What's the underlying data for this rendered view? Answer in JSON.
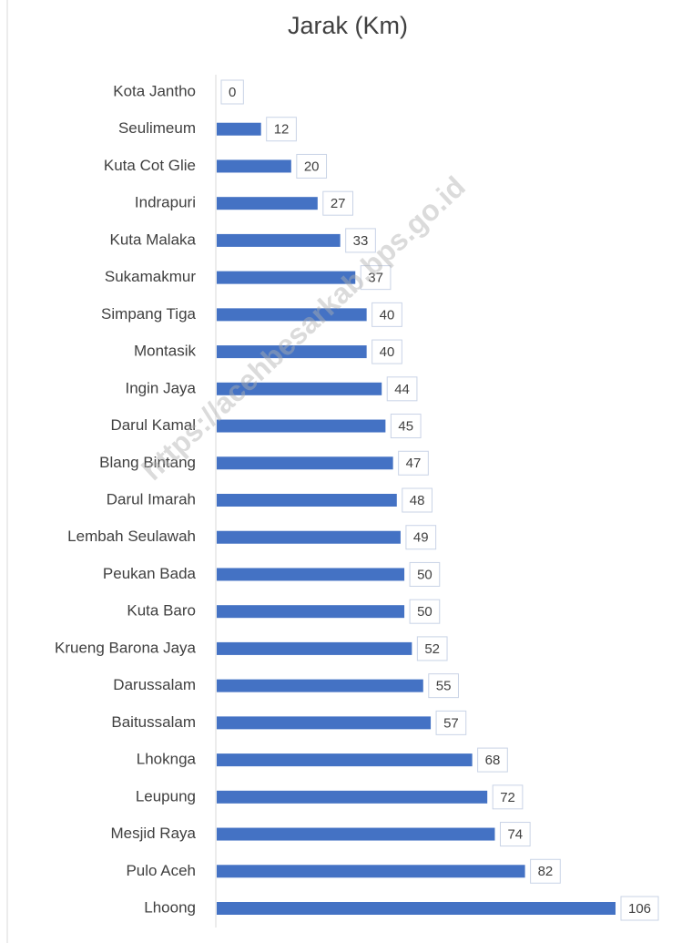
{
  "chart_data": {
    "type": "bar",
    "orientation": "horizontal",
    "title": "Jarak (Km)",
    "watermark": "https://acehbesarkab.bps.go.id",
    "categories": [
      "Kota Jantho",
      "Seulimeum",
      "Kuta Cot Glie",
      "Indrapuri",
      "Kuta Malaka",
      "Sukamakmur",
      "Simpang Tiga",
      "Montasik",
      "Ingin Jaya",
      "Darul Kamal",
      "Blang Bintang",
      "Darul Imarah",
      "Lembah Seulawah",
      "Peukan Bada ",
      "Kuta Baro",
      "Krueng Barona Jaya",
      "Darussalam",
      "Baitussalam",
      "Lhoknga",
      "Leupung",
      "Mesjid Raya",
      "Pulo Aceh",
      "Lhoong"
    ],
    "values": [
      0,
      12,
      20,
      27,
      33,
      37,
      40,
      40,
      44,
      45,
      47,
      48,
      49,
      50,
      50,
      52,
      55,
      57,
      68,
      72,
      74,
      82,
      106
    ],
    "color": "#4472c4"
  }
}
